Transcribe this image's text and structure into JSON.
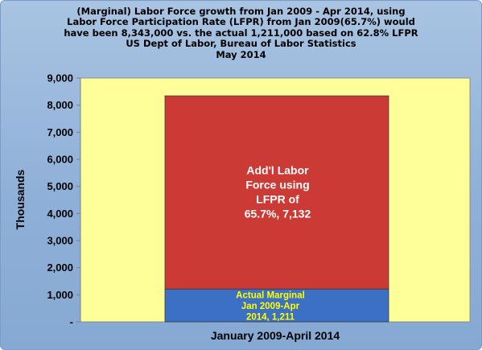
{
  "colors": {
    "plot_background": "#ffff99",
    "actual_segment": "#3b70c4",
    "additional_segment": "#cc3a35",
    "actual_label": "#ffff00",
    "additional_label": "#ffffff"
  },
  "chart_data": {
    "type": "bar",
    "stacked": true,
    "title": [
      "(Marginal) Labor Force growth from Jan 2009 - Apr 2014, using",
      "Labor Force Participation Rate (LFPR) from Jan 2009(65.7%)  would",
      "have been 8,343,000 vs. the actual 1,211,000 based on 62.8% LFPR",
      "US Dept of Labor, Bureau of Labor Statistics",
      "May 2014"
    ],
    "categories": [
      "January 2009-April 2014"
    ],
    "ylabel": "Thousands",
    "xlabel": "",
    "ylim": [
      0,
      9000
    ],
    "yticks": [
      {
        "value": 0,
        "label": "-"
      },
      {
        "value": 1000,
        "label": "1,000"
      },
      {
        "value": 2000,
        "label": "2,000"
      },
      {
        "value": 3000,
        "label": "3,000"
      },
      {
        "value": 4000,
        "label": "4,000"
      },
      {
        "value": 5000,
        "label": "5,000"
      },
      {
        "value": 6000,
        "label": "6,000"
      },
      {
        "value": 7000,
        "label": "7,000"
      },
      {
        "value": 8000,
        "label": "8,000"
      },
      {
        "value": 9000,
        "label": "9,000"
      }
    ],
    "series": [
      {
        "key": "actual",
        "values": [
          1211
        ],
        "data_label": [
          "Actual Marginal",
          "Jan 2009-Apr",
          "2014,  1,211"
        ]
      },
      {
        "key": "additional",
        "values": [
          7132
        ],
        "data_label": [
          "Add'l Labor",
          "Force using",
          "LFPR of",
          "65.7%,  7,132"
        ]
      }
    ],
    "grid": false,
    "legend": "none"
  }
}
